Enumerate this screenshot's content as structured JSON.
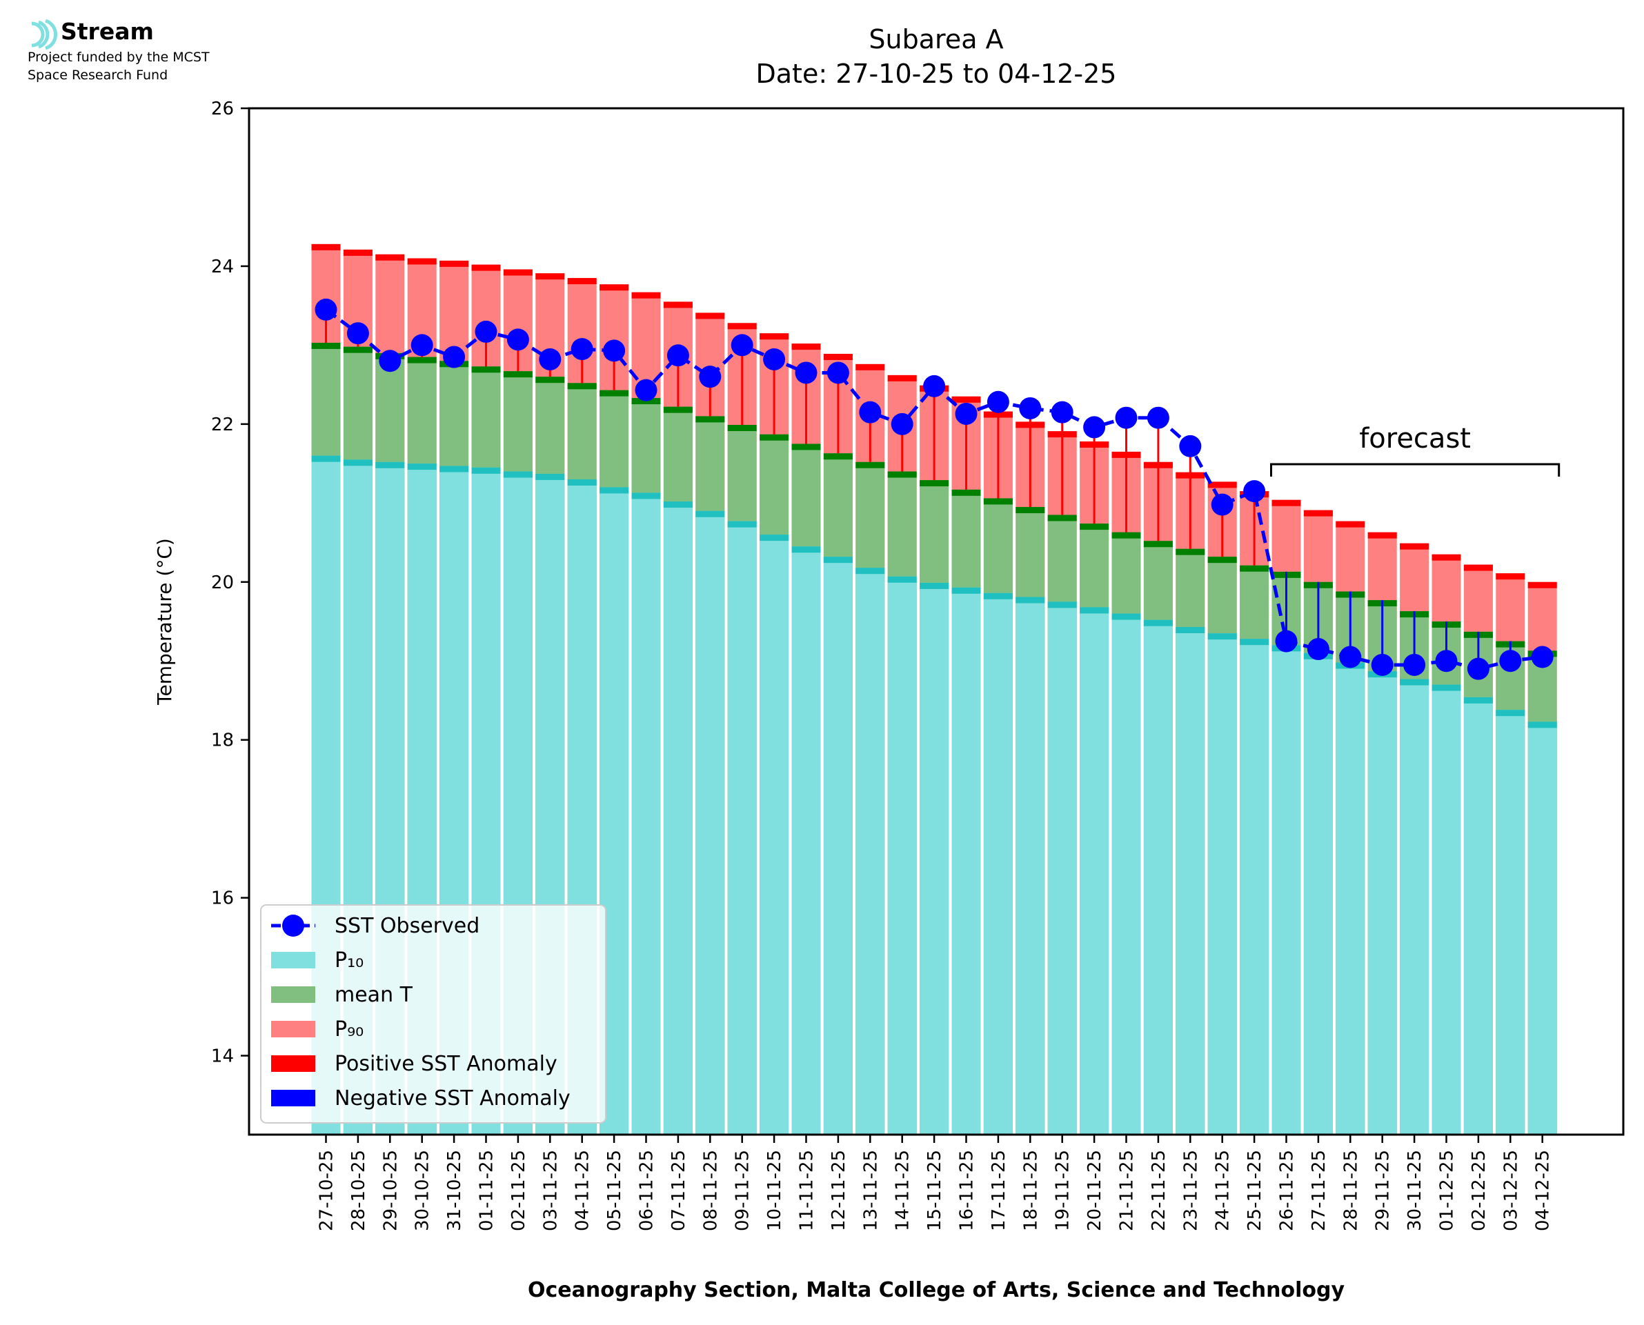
{
  "logo": {
    "name": "Stream",
    "line1": "Project funded by the MCST",
    "line2": "Space Research Fund"
  },
  "chart_data": {
    "type": "bar",
    "title": "Subarea A",
    "subtitle": "Date: 27-10-25 to 04-12-25",
    "xlabel": "Oceanography Section, Malta College of Arts, Science and Technology",
    "ylabel": "Temperature (°C)",
    "ylim": [
      13,
      26
    ],
    "yticks": [
      14,
      16,
      18,
      20,
      22,
      24,
      26
    ],
    "grid": false,
    "legend_position": "lower-left",
    "annotation": "forecast",
    "forecast_start": "26-11-25",
    "forecast_end": "04-12-25",
    "categories": [
      "27-10-25",
      "28-10-25",
      "29-10-25",
      "30-10-25",
      "31-10-25",
      "01-11-25",
      "02-11-25",
      "03-11-25",
      "04-11-25",
      "05-11-25",
      "06-11-25",
      "07-11-25",
      "08-11-25",
      "09-11-25",
      "10-11-25",
      "11-11-25",
      "12-11-25",
      "13-11-25",
      "14-11-25",
      "15-11-25",
      "16-11-25",
      "17-11-25",
      "18-11-25",
      "19-11-25",
      "20-11-25",
      "21-11-25",
      "22-11-25",
      "23-11-25",
      "24-11-25",
      "25-11-25",
      "26-11-25",
      "27-11-25",
      "28-11-25",
      "29-11-25",
      "30-11-25",
      "01-12-25",
      "02-12-25",
      "03-12-25",
      "04-12-25"
    ],
    "series": [
      {
        "name": "SST Observed",
        "type": "line",
        "color": "#0000ff",
        "values": [
          23.45,
          23.15,
          22.8,
          23.0,
          22.85,
          23.17,
          23.07,
          22.82,
          22.95,
          22.93,
          22.43,
          22.87,
          22.6,
          23.0,
          22.82,
          22.65,
          22.65,
          22.15,
          22.0,
          22.48,
          22.13,
          22.28,
          22.2,
          22.15,
          21.96,
          22.08,
          22.08,
          21.72,
          20.98,
          21.15,
          19.25,
          19.15,
          19.05,
          18.95,
          18.95,
          19.0,
          18.9,
          19.0,
          19.05
        ]
      },
      {
        "name": "P₁₀",
        "type": "bar",
        "color": "#80dfdf",
        "values": [
          21.6,
          21.55,
          21.52,
          21.5,
          21.47,
          21.45,
          21.4,
          21.37,
          21.3,
          21.2,
          21.13,
          21.02,
          20.9,
          20.77,
          20.6,
          20.45,
          20.32,
          20.18,
          20.07,
          19.99,
          19.93,
          19.86,
          19.81,
          19.75,
          19.68,
          19.6,
          19.52,
          19.43,
          19.35,
          19.28,
          19.2,
          19.1,
          18.98,
          18.87,
          18.77,
          18.7,
          18.54,
          18.38,
          18.23
        ]
      },
      {
        "name": "mean T",
        "type": "bar",
        "color": "#80bf80",
        "values": [
          23.03,
          22.98,
          22.9,
          22.85,
          22.8,
          22.73,
          22.67,
          22.6,
          22.52,
          22.43,
          22.33,
          22.22,
          22.1,
          21.99,
          21.87,
          21.75,
          21.63,
          21.52,
          21.4,
          21.29,
          21.17,
          21.06,
          20.95,
          20.85,
          20.74,
          20.63,
          20.52,
          20.42,
          20.32,
          20.21,
          20.13,
          20.0,
          19.88,
          19.77,
          19.63,
          19.5,
          19.37,
          19.25,
          19.13
        ]
      },
      {
        "name": "P₉₀",
        "type": "bar",
        "color": "#ff8080",
        "values": [
          24.28,
          24.21,
          24.15,
          24.1,
          24.07,
          24.02,
          23.96,
          23.91,
          23.85,
          23.77,
          23.67,
          23.55,
          23.41,
          23.28,
          23.15,
          23.02,
          22.89,
          22.76,
          22.62,
          22.49,
          22.35,
          22.16,
          22.03,
          21.91,
          21.78,
          21.65,
          21.52,
          21.39,
          21.27,
          21.15,
          21.04,
          20.91,
          20.77,
          20.63,
          20.49,
          20.35,
          20.22,
          20.11,
          20.0
        ]
      },
      {
        "name": "Positive SST Anomaly",
        "type": "legend",
        "color": "#ff0000"
      },
      {
        "name": "Negative SST Anomaly",
        "type": "legend",
        "color": "#0000ff"
      }
    ]
  }
}
